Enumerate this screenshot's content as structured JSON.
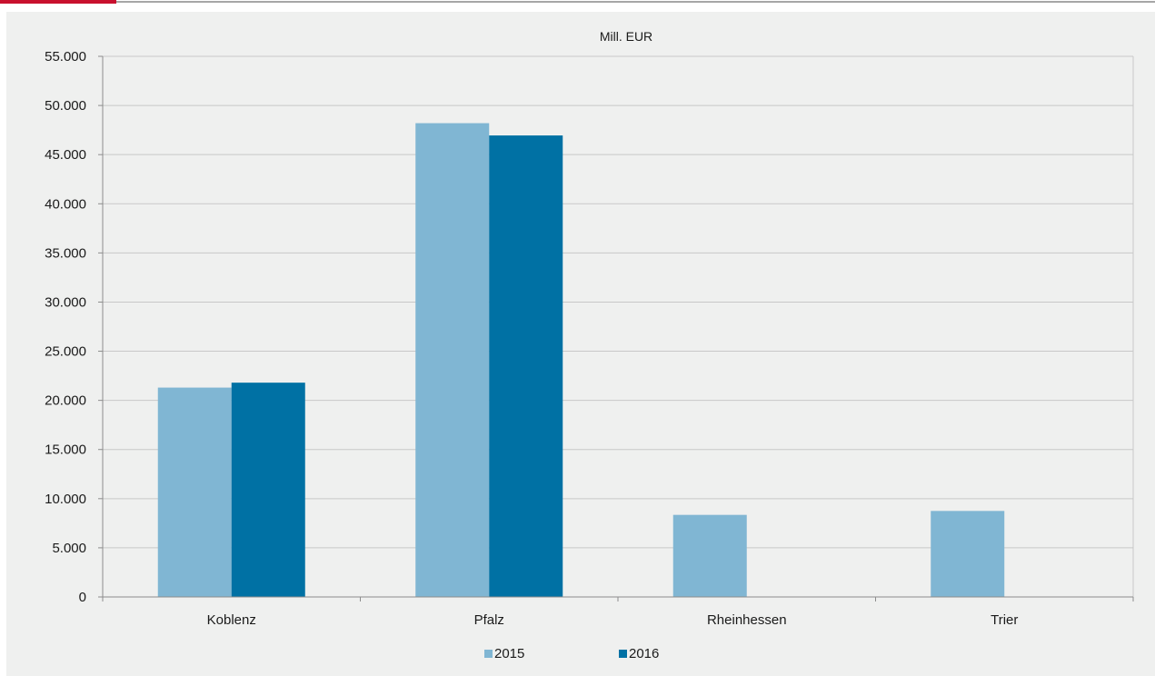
{
  "chart_data": {
    "type": "bar",
    "title": "Mill. EUR",
    "categories": [
      "Koblenz",
      "Pfalz",
      "Rheinhessen",
      "Trier"
    ],
    "series": [
      {
        "name": "2015",
        "values": [
          21300,
          48200,
          8350,
          8750
        ],
        "color": "#80b6d3"
      },
      {
        "name": "2016",
        "values": [
          21800,
          46950,
          0,
          0
        ],
        "color": "#0071a4"
      }
    ],
    "ylim": [
      0,
      55000
    ],
    "yticks": [
      "0",
      "5.000",
      "10.000",
      "15.000",
      "20.000",
      "25.000",
      "30.000",
      "35.000",
      "40.000",
      "45.000",
      "50.000",
      "55.000"
    ],
    "grid": true,
    "legend_position": "bottom",
    "colors": {
      "grid": "#c8c8c8",
      "axis": "#8c8c8c",
      "accent": "#c8102e"
    }
  }
}
